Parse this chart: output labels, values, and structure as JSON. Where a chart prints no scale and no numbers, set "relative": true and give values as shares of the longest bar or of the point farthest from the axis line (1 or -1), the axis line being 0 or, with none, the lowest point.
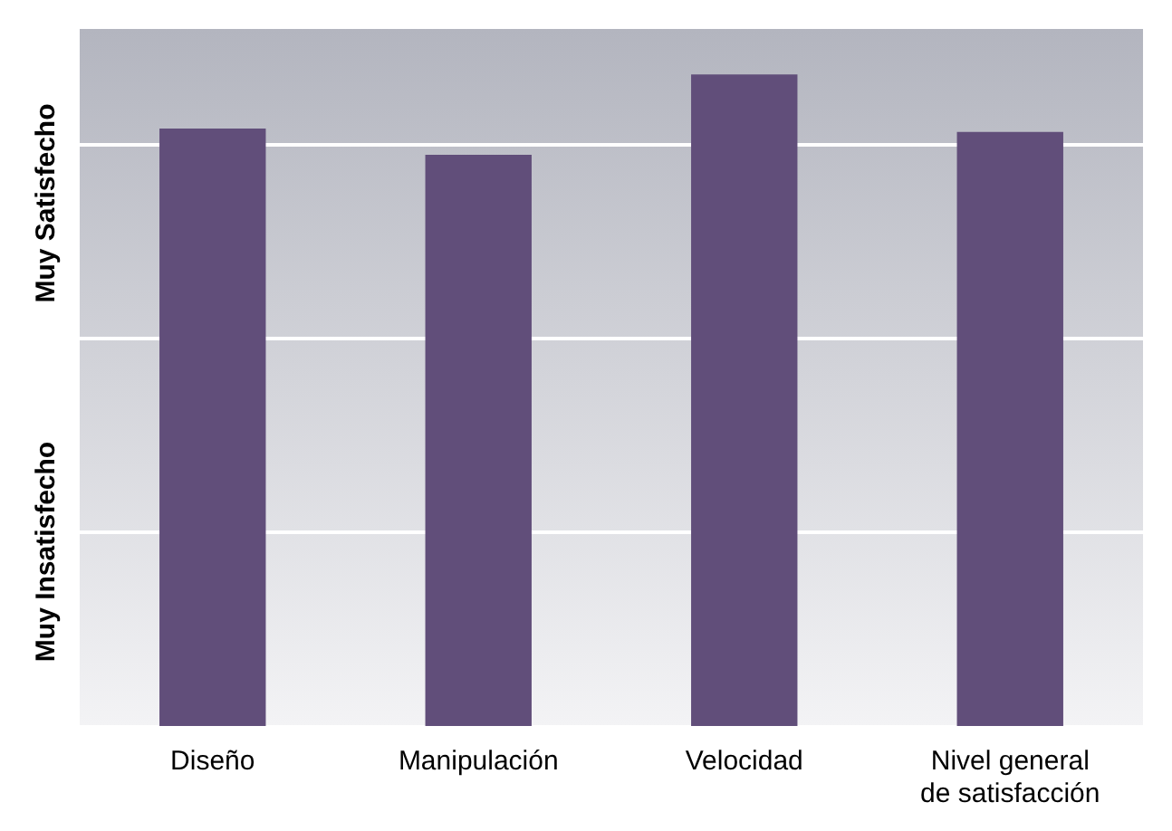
{
  "chart_data": {
    "type": "bar",
    "relative": true,
    "categories": [
      "Diseño",
      "Manipulación",
      "Velocidad",
      "Nivel general de satisfacción"
    ],
    "values": [
      0.917,
      0.877,
      1,
      0.912
    ],
    "color": "#614e7a",
    "grid": "y",
    "legend": false,
    "annotations": [
      "Muy Insatisfecho",
      "Muy Satisfecho"
    ]
  }
}
